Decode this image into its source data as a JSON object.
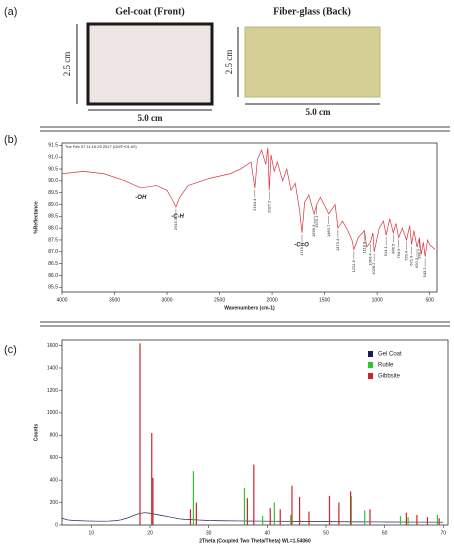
{
  "panel_a": {
    "panel_label": "(a)",
    "photos": [
      {
        "title": "Gel-coat (Front)",
        "height_label": "2.5 cm",
        "width_label": "5.0 cm"
      },
      {
        "title": "Fiber-glass (Back)",
        "height_label": "2.5 cm",
        "width_label": "5.0 cm"
      }
    ]
  },
  "chart_data": [
    {
      "type": "line",
      "panel_label": "(b)",
      "header_text": "Tue Feb 07 11:16:25 2017 (GMT+01:00)",
      "xlabel": "Wavenumbers (cm-1)",
      "ylabel": "%Reflectance",
      "xlim": [
        4000,
        430
      ],
      "xticks": [
        4000,
        3500,
        3000,
        2500,
        2000,
        1500,
        1000,
        500
      ],
      "ylim": [
        85.3,
        91.6
      ],
      "yticks": [
        85.5,
        {
          "value": 86,
          "label": "86.0"
        },
        86.5,
        {
          "value": 87,
          "label": "87.0"
        },
        87.5,
        {
          "value": 88,
          "label": "88.0"
        },
        88.5,
        {
          "value": 89,
          "label": "89.0"
        },
        89.5,
        {
          "value": 90,
          "label": "90.0"
        },
        90.5,
        {
          "value": 91,
          "label": "91.0"
        },
        91.5
      ],
      "series": [
        {
          "name": "Spectrum",
          "color": "#d9333f",
          "x": [
            4000,
            3800,
            3600,
            3400,
            3250,
            3100,
            3000,
            2950,
            2915,
            2880,
            2800,
            2600,
            2400,
            2300,
            2200,
            2164,
            2140,
            2100,
            2060,
            2040,
            2027,
            2010,
            1980,
            1950,
            1900,
            1860,
            1820,
            1780,
            1740,
            1715,
            1690,
            1650,
            1600,
            1575,
            1540,
            1460,
            1400,
            1373,
            1330,
            1280,
            1240,
            1221,
            1180,
            1120,
            1100,
            1064,
            1040,
            1028,
            980,
            940,
            914,
            880,
            846,
            820,
            795,
            760,
            720,
            690,
            672,
            650,
            620,
            598,
            580,
            560,
            543,
            520,
            500,
            450
          ],
          "values": [
            90.3,
            90.4,
            90.3,
            90.0,
            89.7,
            89.8,
            89.6,
            89.2,
            88.9,
            89.3,
            89.8,
            90.1,
            90.3,
            90.5,
            90.8,
            89.7,
            90.9,
            91.3,
            90.7,
            91.4,
            89.6,
            91.1,
            90.4,
            90.8,
            90.0,
            90.5,
            89.6,
            89.9,
            88.8,
            87.8,
            89.1,
            89.4,
            88.6,
            89.0,
            89.3,
            88.6,
            89.0,
            88.0,
            88.3,
            87.9,
            87.5,
            87.1,
            87.6,
            87.9,
            87.2,
            87.4,
            87.8,
            87.0,
            88.0,
            88.3,
            87.7,
            88.4,
            87.8,
            88.2,
            87.6,
            88.0,
            87.5,
            88.1,
            87.3,
            87.9,
            87.2,
            87.6,
            86.9,
            87.4,
            86.8,
            87.5,
            87.3,
            87.1
          ]
        }
      ],
      "peak_labels": [
        {
          "x": 2915.5,
          "label": "2915.5"
        },
        {
          "x": 2164.4,
          "label": "2164.4"
        },
        {
          "x": 2027.2,
          "label": "2027.2"
        },
        {
          "x": 1715.2,
          "label": "1715.2"
        },
        {
          "x": 1599.3,
          "label": "1599.3"
        },
        {
          "x": 1575.1,
          "label": "1575.1"
        },
        {
          "x": 1460.7,
          "label": "1460.7"
        },
        {
          "x": 1373.4,
          "label": "1373.4"
        },
        {
          "x": 1221.6,
          "label": "1221.6"
        },
        {
          "x": 1119.8,
          "label": "1119.8"
        },
        {
          "x": 1064.4,
          "label": "1064.4"
        },
        {
          "x": 1028.2,
          "label": "1028.2"
        },
        {
          "x": 914.1,
          "label": "914.1"
        },
        {
          "x": 846.5,
          "label": "846.5"
        },
        {
          "x": 794.6,
          "label": "794.6"
        },
        {
          "x": 720.4,
          "label": "720.4"
        },
        {
          "x": 671.9,
          "label": "671.9"
        },
        {
          "x": 620.3,
          "label": "620.3"
        },
        {
          "x": 598.7,
          "label": "598.7"
        },
        {
          "x": 543.2,
          "label": "543.2"
        }
      ],
      "annotations": [
        {
          "text": "-OH",
          "x": 3250,
          "y": 89.3
        },
        {
          "text": "-C-H",
          "x": 2900,
          "y": 88.5
        },
        {
          "text": "-C=O",
          "x": 1720,
          "y": 87.3
        }
      ]
    },
    {
      "type": "line",
      "panel_label": "(c)",
      "xlabel": "2Theta (Coupled Two Theta/Theta) WL=1.54060",
      "ylabel": "Counts",
      "xlim": [
        5,
        70.8
      ],
      "xticks": [
        10,
        20,
        30,
        40,
        50,
        60,
        70
      ],
      "ylim": [
        0,
        1650
      ],
      "yticks": [
        0,
        200,
        400,
        600,
        800,
        1000,
        1200,
        1400,
        1600
      ],
      "legend": "upper right",
      "series": [
        {
          "name": "Gel Coat",
          "color": "#1c1c4e",
          "mark": "line",
          "x": [
            5,
            6,
            7,
            8,
            9,
            10,
            11,
            12,
            13,
            14,
            15,
            16,
            17,
            18,
            19,
            20,
            21,
            22,
            23,
            24,
            25,
            26,
            27,
            28,
            30,
            32,
            35,
            40,
            45,
            50,
            55,
            60,
            65,
            70
          ],
          "values": [
            60,
            45,
            40,
            38,
            36,
            35,
            34,
            34,
            35,
            38,
            45,
            60,
            80,
            100,
            110,
            105,
            95,
            85,
            75,
            65,
            55,
            50,
            48,
            45,
            40,
            38,
            36,
            34,
            32,
            30,
            28,
            27,
            26,
            25
          ]
        },
        {
          "name": "Rutile",
          "color": "#2fc52f",
          "mark": "stick",
          "x": [
            27.4,
            36.1,
            39.2,
            41.2,
            44.0,
            54.3,
            56.6,
            62.7,
            64.0,
            69.0
          ],
          "values": [
            480,
            330,
            80,
            200,
            90,
            260,
            130,
            80,
            70,
            90
          ]
        },
        {
          "name": "Gibbsite",
          "color": "#c9262c",
          "mark": "stick",
          "x": [
            18.3,
            20.3,
            20.5,
            26.9,
            27.9,
            36.6,
            37.7,
            40.5,
            42.2,
            44.2,
            45.5,
            47.1,
            50.6,
            52.2,
            54.2,
            57.5,
            63.7,
            65.5,
            67.3,
            69.3
          ],
          "values": [
            1620,
            820,
            420,
            140,
            200,
            240,
            540,
            150,
            140,
            350,
            250,
            120,
            260,
            200,
            300,
            140,
            110,
            90,
            70,
            60
          ]
        }
      ]
    }
  ]
}
